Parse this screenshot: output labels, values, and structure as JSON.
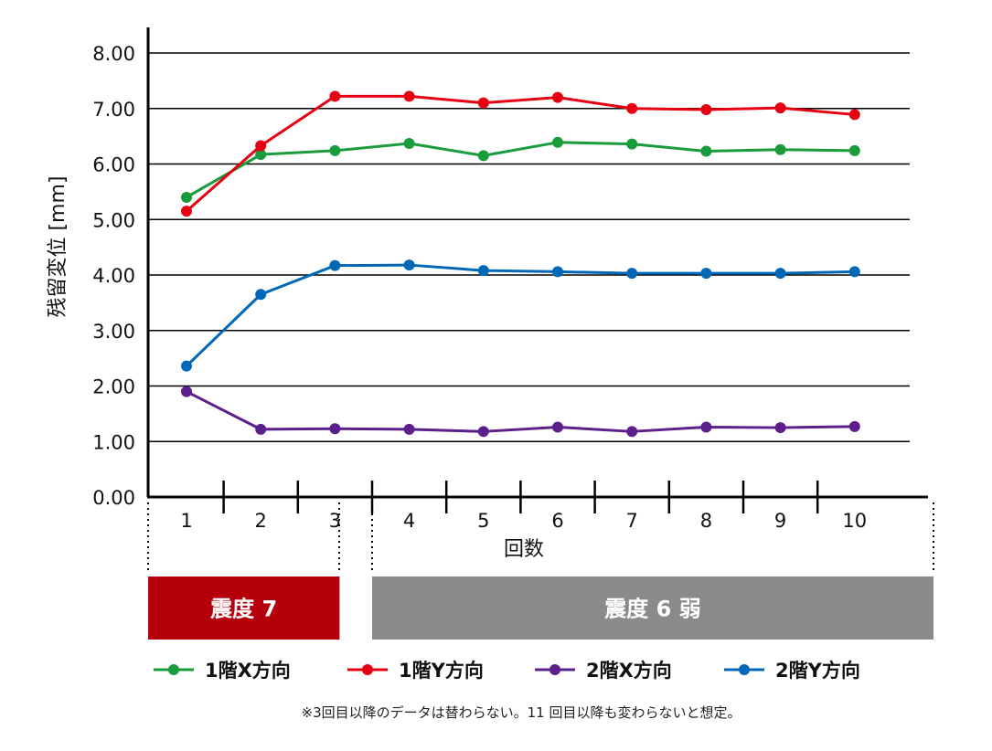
{
  "chart_data": {
    "type": "line",
    "ylabel": "残留変位 [mm]",
    "xlabel": "回数",
    "ylim": [
      0,
      8
    ],
    "y_ticks": [
      "0.00",
      "1.00",
      "2.00",
      "3.00",
      "4.00",
      "5.00",
      "6.00",
      "7.00",
      "8.00"
    ],
    "categories": [
      "1",
      "2",
      "3",
      "4",
      "5",
      "6",
      "7",
      "8",
      "9",
      "10"
    ],
    "grid": true,
    "legend_position": "bottom",
    "series": [
      {
        "name": "1階X方向",
        "color": "#1a9b3c",
        "values": [
          5.4,
          6.17,
          6.24,
          6.37,
          6.15,
          6.39,
          6.36,
          6.23,
          6.26,
          6.24
        ]
      },
      {
        "name": "1階Y方向",
        "color": "#e60012",
        "values": [
          5.15,
          6.33,
          7.22,
          7.22,
          7.1,
          7.2,
          7.0,
          6.98,
          7.01,
          6.89
        ]
      },
      {
        "name": "2階X方向",
        "color": "#5c1f8c",
        "values": [
          1.9,
          1.22,
          1.23,
          1.22,
          1.18,
          1.26,
          1.18,
          1.26,
          1.25,
          1.27
        ]
      },
      {
        "name": "2階Y方向",
        "color": "#0068b7",
        "values": [
          2.36,
          3.65,
          4.17,
          4.18,
          4.08,
          4.06,
          4.03,
          4.03,
          4.03,
          4.06
        ]
      }
    ],
    "intensity_bands": [
      {
        "label": "震度 7",
        "from": 1,
        "to": 2,
        "color": "#b5000c"
      },
      {
        "label": "震度 6 弱",
        "from": 3,
        "to": 10,
        "color": "#8a8a8a"
      }
    ],
    "note": "※3回目以降のデータは替わらない。11 回目以降も変わらないと想定。"
  }
}
